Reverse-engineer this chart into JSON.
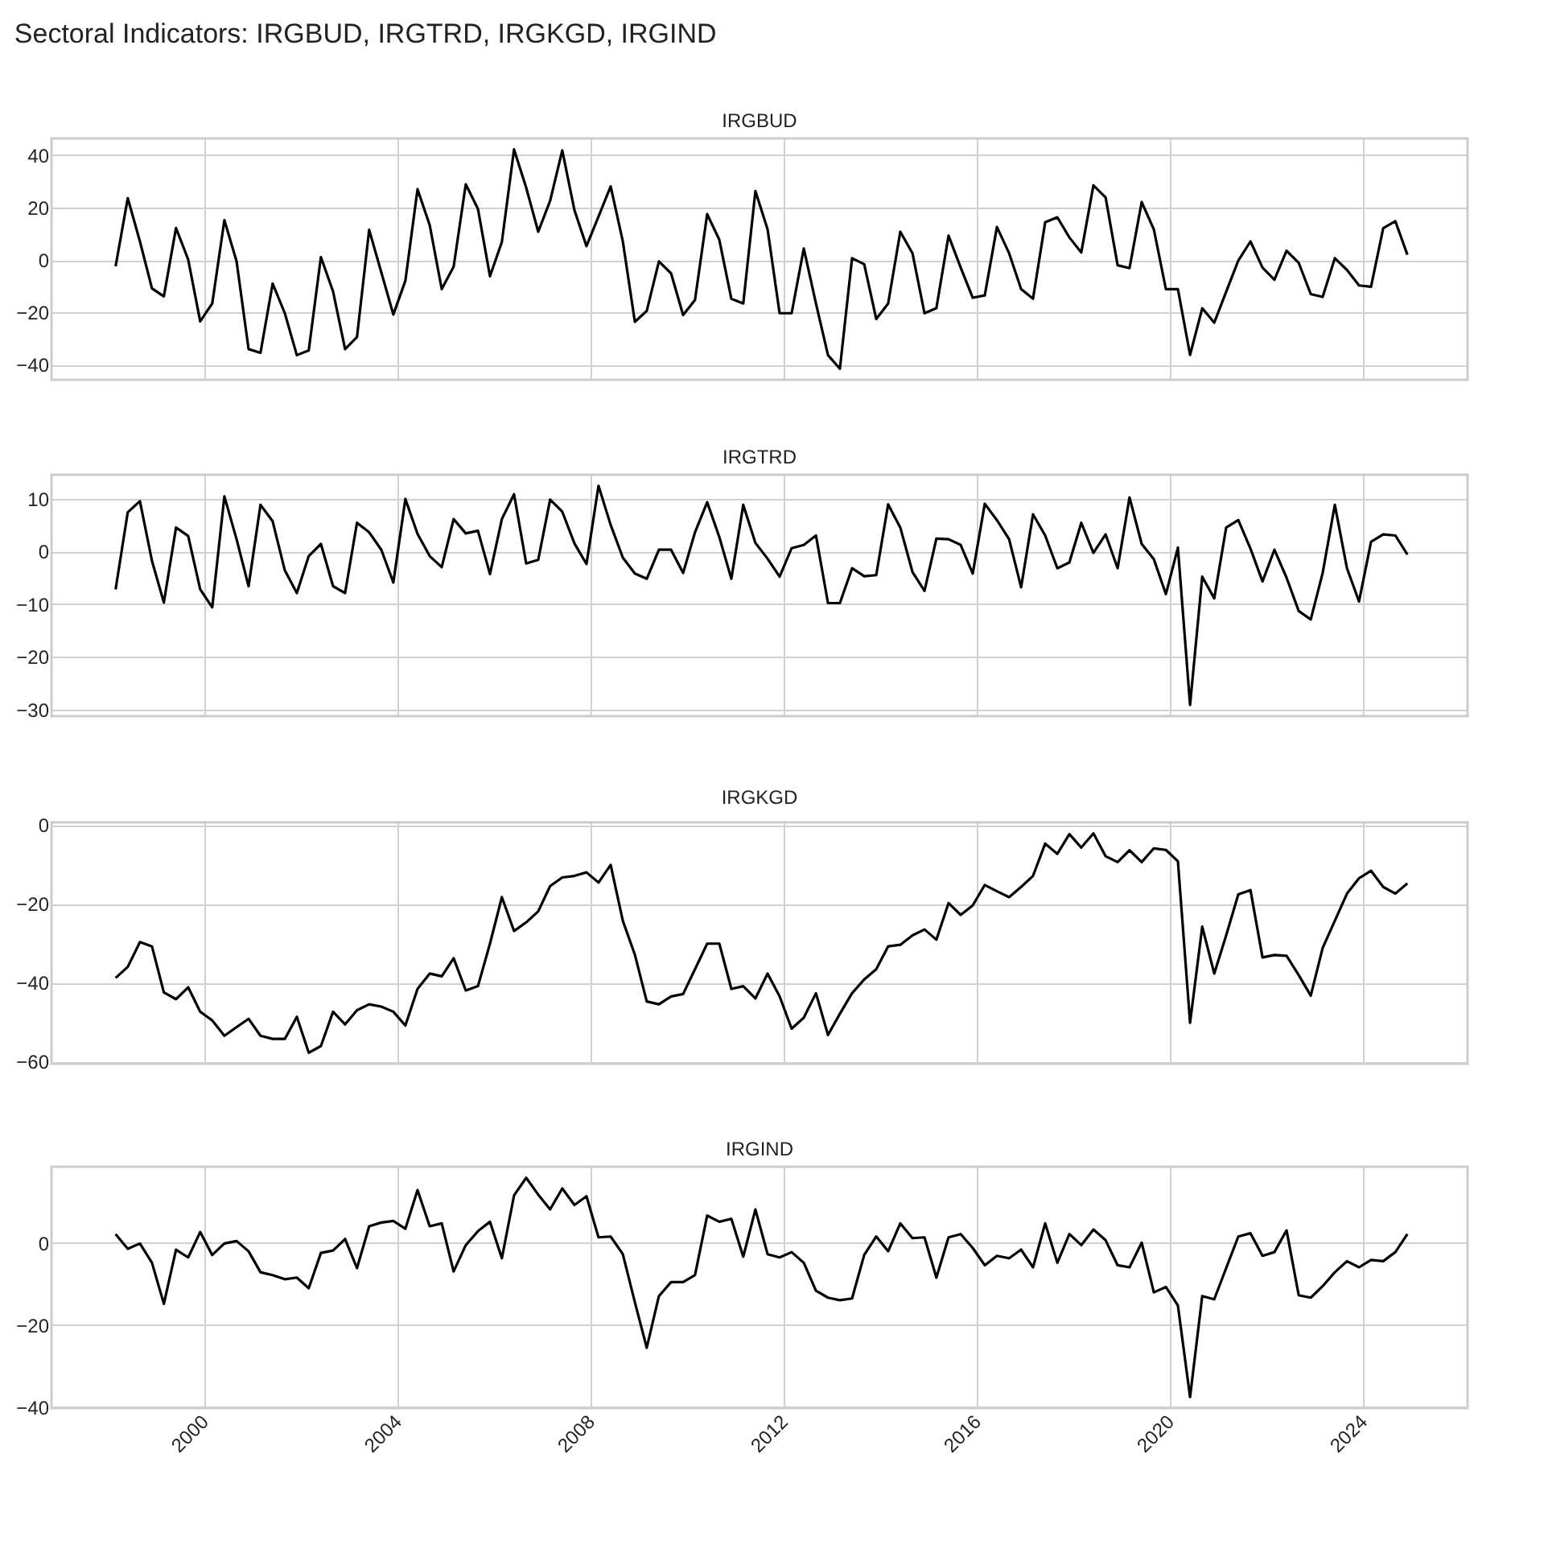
{
  "chart_data": [
    {
      "type": "line",
      "title": "Sectoral Indicators: IRGBUD, IRGTRD, IRGKGD, IRGIND",
      "subtitle": "IRGBUD",
      "grid": true,
      "tick_labels": "y",
      "xlim": [
        "1996-11",
        "2026-03"
      ],
      "xticks": [
        "2000",
        "2004",
        "2008",
        "2012",
        "2016",
        "2020",
        "2024"
      ],
      "ylim": [
        -45.7,
        46.4
      ],
      "yticks": [
        -40,
        -20,
        0,
        20,
        40
      ],
      "x": [
        "1998-03",
        "1998-06",
        "1998-09",
        "1998-12",
        "1999-03",
        "1999-06",
        "1999-09",
        "1999-12",
        "2000-03",
        "2000-06",
        "2000-09",
        "2000-12",
        "2001-03",
        "2001-06",
        "2001-09",
        "2001-12",
        "2002-03",
        "2002-06",
        "2002-09",
        "2002-12",
        "2003-03",
        "2003-06",
        "2003-09",
        "2003-12",
        "2004-03",
        "2004-06",
        "2004-09",
        "2004-12",
        "2005-03",
        "2005-06",
        "2005-09",
        "2005-12",
        "2006-03",
        "2006-06",
        "2006-09",
        "2006-12",
        "2007-03",
        "2007-06",
        "2007-09",
        "2007-12",
        "2008-03",
        "2008-06",
        "2008-09",
        "2008-12",
        "2009-03",
        "2009-06",
        "2009-09",
        "2009-12",
        "2010-03",
        "2010-06",
        "2010-09",
        "2010-12",
        "2011-03",
        "2011-06",
        "2011-09",
        "2011-12",
        "2012-03",
        "2012-06",
        "2012-09",
        "2012-12",
        "2013-03",
        "2013-06",
        "2013-09",
        "2013-12",
        "2014-03",
        "2014-06",
        "2014-09",
        "2014-12",
        "2015-03",
        "2015-06",
        "2015-09",
        "2015-12",
        "2016-03",
        "2016-06",
        "2016-09",
        "2016-12",
        "2017-03",
        "2017-06",
        "2017-09",
        "2017-12",
        "2018-03",
        "2018-06",
        "2018-09",
        "2018-12",
        "2019-03",
        "2019-06",
        "2019-09",
        "2019-12",
        "2020-03",
        "2020-06",
        "2020-09",
        "2020-12",
        "2021-03",
        "2021-06",
        "2021-09",
        "2021-12",
        "2022-03",
        "2022-06",
        "2022-09",
        "2022-12",
        "2023-03",
        "2023-06",
        "2023-09",
        "2023-12",
        "2024-03",
        "2024-06",
        "2024-09",
        "2024-12"
      ],
      "series": [
        {
          "color": "#000000",
          "values": [
            -2.4,
            23.6,
            7.1,
            -10.8,
            -13.9,
            12.2,
            0.2,
            -23.4,
            -16.6,
            15.2,
            -0.5,
            -34,
            -35.4,
            -9,
            -20.3,
            -36.3,
            -34.5,
            1.1,
            -12,
            -34,
            -29.4,
            11.5,
            -4.7,
            -20.8,
            -7.9,
            27,
            13.3,
            -11.1,
            -2.6,
            28.9,
            19.5,
            -6.2,
            6.9,
            42.2,
            27.6,
            10.8,
            22.6,
            41.8,
            19,
            5.3,
            16.6,
            28.1,
            7.1,
            -23.6,
            -19.4,
            -0.5,
            -5.1,
            -21,
            -15.2,
            17.5,
            7.7,
            -14.8,
            -16.6,
            26.3,
            11.7,
            -20.3,
            -20.3,
            4.4,
            -16.6,
            -36.3,
            -41.5,
            0.7,
            -1.6,
            -22.5,
            -16.6,
            10.8,
            2.6,
            -20.3,
            -18.4,
            9.3,
            -2.9,
            -14.4,
            -13.5,
            12.6,
            2.6,
            -11.1,
            -14.8,
            14.4,
            16.3,
            8.6,
            2.9,
            28.5,
            23.9,
            -2,
            -3.1,
            22.1,
            11.7,
            -11.1,
            -11.1,
            -36.2,
            -18.4,
            -23.9,
            -12.1,
            -0.2,
            7.1,
            -2.9,
            -7.5,
            3.5,
            -1.1,
            -13,
            -14.1,
            0.7,
            -3.8,
            -9.7,
            -10.2,
            12.1,
            14.8,
            2
          ]
        }
      ]
    },
    {
      "type": "line",
      "title": "IRGTRD",
      "grid": true,
      "tick_labels": "y",
      "xlim": [
        "1996-11",
        "2026-03"
      ],
      "xticks": [
        "2000",
        "2004",
        "2008",
        "2012",
        "2016",
        "2020",
        "2024"
      ],
      "ylim": [
        -31.2,
        14.5
      ],
      "yticks": [
        -30,
        -20,
        -10,
        0,
        10
      ],
      "x": [
        "1998-03",
        "1998-06",
        "1998-09",
        "1998-12",
        "1999-03",
        "1999-06",
        "1999-09",
        "1999-12",
        "2000-03",
        "2000-06",
        "2000-09",
        "2000-12",
        "2001-03",
        "2001-06",
        "2001-09",
        "2001-12",
        "2002-03",
        "2002-06",
        "2002-09",
        "2002-12",
        "2003-03",
        "2003-06",
        "2003-09",
        "2003-12",
        "2004-03",
        "2004-06",
        "2004-09",
        "2004-12",
        "2005-03",
        "2005-06",
        "2005-09",
        "2005-12",
        "2006-03",
        "2006-06",
        "2006-09",
        "2006-12",
        "2007-03",
        "2007-06",
        "2007-09",
        "2007-12",
        "2008-03",
        "2008-06",
        "2008-09",
        "2008-12",
        "2009-03",
        "2009-06",
        "2009-09",
        "2009-12",
        "2010-03",
        "2010-06",
        "2010-09",
        "2010-12",
        "2011-03",
        "2011-06",
        "2011-09",
        "2011-12",
        "2012-03",
        "2012-06",
        "2012-09",
        "2012-12",
        "2013-03",
        "2013-06",
        "2013-09",
        "2013-12",
        "2014-03",
        "2014-06",
        "2014-09",
        "2014-12",
        "2015-03",
        "2015-06",
        "2015-09",
        "2015-12",
        "2016-03",
        "2016-06",
        "2016-09",
        "2016-12",
        "2017-03",
        "2017-06",
        "2017-09",
        "2017-12",
        "2018-03",
        "2018-06",
        "2018-09",
        "2018-12",
        "2019-03",
        "2019-06",
        "2019-09",
        "2019-12",
        "2020-03",
        "2020-06",
        "2020-09",
        "2020-12",
        "2021-03",
        "2021-06",
        "2021-09",
        "2021-12",
        "2022-03",
        "2022-06",
        "2022-09",
        "2022-12",
        "2023-03",
        "2023-06",
        "2023-09",
        "2023-12",
        "2024-03",
        "2024-06",
        "2024-09",
        "2024-12"
      ],
      "series": [
        {
          "color": "#000000",
          "values": [
            -7.2,
            7.4,
            9.5,
            -1.8,
            -9.7,
            4.5,
            2.9,
            -7.2,
            -10.6,
            10.4,
            2.3,
            -6.6,
            8.8,
            5.7,
            -3.6,
            -7.9,
            -0.9,
            1.4,
            -6.6,
            -7.9,
            5.4,
            3.6,
            0.3,
            -5.9,
            9.9,
            3.3,
            -0.9,
            -3,
            6.1,
            3.4,
            3.9,
            -4.3,
            6.1,
            10.8,
            -2.3,
            -1.6,
            9.8,
            7.5,
            1.5,
            -2.4,
            12.4,
            5,
            -1.2,
            -4.2,
            -5.2,
            0.3,
            0.3,
            -4.1,
            3.6,
            9.3,
            2.7,
            -5.2,
            8.8,
            1.6,
            -1.4,
            -4.8,
            0.6,
            1.2,
            3,
            -9.8,
            -9.8,
            -3.2,
            -4.7,
            -4.5,
            8.9,
            4.5,
            -3.9,
            -7.5,
            2.4,
            2.3,
            1.2,
            -4.2,
            9,
            5.9,
            2.3,
            -6.8,
            7,
            3,
            -3.2,
            -2.1,
            5.4,
            -0.3,
            3.2,
            -3.2,
            10.2,
            1.4,
            -1.5,
            -8.1,
            0.7,
            -29.1,
            -4.8,
            -8.9,
            4.5,
            5.9,
            0.5,
            -5.7,
            0.3,
            -5,
            -11.3,
            -12.9,
            -4.1,
            8.8,
            -3.2,
            -9.5,
            1.8,
            3.2,
            3,
            -0.6
          ]
        }
      ]
    },
    {
      "type": "line",
      "title": "IRGKGD",
      "grid": true,
      "tick_labels": "y",
      "xlim": [
        "1996-11",
        "2026-03"
      ],
      "xticks": [
        "2000",
        "2004",
        "2008",
        "2012",
        "2016",
        "2020",
        "2024"
      ],
      "ylim": [
        -60.6,
        0.7
      ],
      "yticks": [
        -60,
        -40,
        -20,
        0
      ],
      "x": [
        "1998-03",
        "1998-06",
        "1998-09",
        "1998-12",
        "1999-03",
        "1999-06",
        "1999-09",
        "1999-12",
        "2000-03",
        "2000-06",
        "2000-09",
        "2000-12",
        "2001-03",
        "2001-06",
        "2001-09",
        "2001-12",
        "2002-03",
        "2002-06",
        "2002-09",
        "2002-12",
        "2003-03",
        "2003-06",
        "2003-09",
        "2003-12",
        "2004-03",
        "2004-06",
        "2004-09",
        "2004-12",
        "2005-03",
        "2005-06",
        "2005-09",
        "2005-12",
        "2006-03",
        "2006-06",
        "2006-09",
        "2006-12",
        "2007-03",
        "2007-06",
        "2007-09",
        "2007-12",
        "2008-03",
        "2008-06",
        "2008-09",
        "2008-12",
        "2009-03",
        "2009-06",
        "2009-09",
        "2009-12",
        "2010-03",
        "2010-06",
        "2010-09",
        "2010-12",
        "2011-03",
        "2011-06",
        "2011-09",
        "2011-12",
        "2012-03",
        "2012-06",
        "2012-09",
        "2012-12",
        "2013-03",
        "2013-06",
        "2013-09",
        "2013-12",
        "2014-03",
        "2014-06",
        "2014-09",
        "2014-12",
        "2015-03",
        "2015-06",
        "2015-09",
        "2015-12",
        "2016-03",
        "2016-06",
        "2016-09",
        "2016-12",
        "2017-03",
        "2017-06",
        "2017-09",
        "2017-12",
        "2018-03",
        "2018-06",
        "2018-09",
        "2018-12",
        "2019-03",
        "2019-06",
        "2019-09",
        "2019-12",
        "2020-03",
        "2020-06",
        "2020-09",
        "2020-12",
        "2021-03",
        "2021-06",
        "2021-09",
        "2021-12",
        "2022-03",
        "2022-06",
        "2022-09",
        "2022-12",
        "2023-03",
        "2023-06",
        "2023-09",
        "2023-12",
        "2024-03",
        "2024-06",
        "2024-09",
        "2024-12"
      ],
      "series": [
        {
          "color": "#000000",
          "values": [
            -38.8,
            -36,
            -29.7,
            -30.8,
            -42.5,
            -44.2,
            -41.2,
            -47.4,
            -49.6,
            -53.5,
            -51.3,
            -49.2,
            -53.5,
            -54.3,
            -54.3,
            -48.7,
            -57.8,
            -56.1,
            -47.4,
            -50.6,
            -47,
            -45.5,
            -46.1,
            -47.4,
            -50.9,
            -41.6,
            -37.7,
            -38.4,
            -33.8,
            -42,
            -40.9,
            -30.1,
            -18.3,
            -26.9,
            -24.7,
            -21.9,
            -15.5,
            -13.3,
            -12.9,
            -12,
            -14.6,
            -10.1,
            -24.3,
            -32.9,
            -44.8,
            -45.5,
            -43.5,
            -42.9,
            -36.6,
            -30.1,
            -30.1,
            -41.6,
            -40.9,
            -44,
            -37.7,
            -43.5,
            -51.7,
            -48.9,
            -42.7,
            -53.3,
            -47.9,
            -42.7,
            -39.2,
            -36.6,
            -30.8,
            -30.4,
            -28,
            -26.5,
            -29.1,
            -19.8,
            -22.8,
            -20.4,
            -15.2,
            -16.8,
            -18.3,
            -15.7,
            -12.9,
            -4.7,
            -7.3,
            -2.3,
            -5.7,
            -2.1,
            -7.9,
            -9.4,
            -6.4,
            -9.4,
            -5.9,
            -6.3,
            -9.2,
            -50.2,
            -25.8,
            -37.7,
            -28,
            -17.6,
            -16.5,
            -33.6,
            -33,
            -33.2,
            -38.1,
            -43.3,
            -31.2,
            -24.3,
            -17.4,
            -13.5,
            -11.6,
            -15.7,
            -17.4,
            -14.8
          ]
        }
      ]
    },
    {
      "type": "line",
      "title": "IRGIND",
      "grid": true,
      "xlim": [
        "1996-11",
        "2026-03"
      ],
      "xticks": [
        "2000",
        "2004",
        "2008",
        "2012",
        "2016",
        "2020",
        "2024"
      ],
      "ylim": [
        -40.2,
        18.6
      ],
      "yticks": [
        -40,
        -20,
        0
      ],
      "x": [
        "1998-03",
        "1998-06",
        "1998-09",
        "1998-12",
        "1999-03",
        "1999-06",
        "1999-09",
        "1999-12",
        "2000-03",
        "2000-06",
        "2000-09",
        "2000-12",
        "2001-03",
        "2001-06",
        "2001-09",
        "2001-12",
        "2002-03",
        "2002-06",
        "2002-09",
        "2002-12",
        "2003-03",
        "2003-06",
        "2003-09",
        "2003-12",
        "2004-03",
        "2004-06",
        "2004-09",
        "2004-12",
        "2005-03",
        "2005-06",
        "2005-09",
        "2005-12",
        "2006-03",
        "2006-06",
        "2006-09",
        "2006-12",
        "2007-03",
        "2007-06",
        "2007-09",
        "2007-12",
        "2008-03",
        "2008-06",
        "2008-09",
        "2008-12",
        "2009-03",
        "2009-06",
        "2009-09",
        "2009-12",
        "2010-03",
        "2010-06",
        "2010-09",
        "2010-12",
        "2011-03",
        "2011-06",
        "2011-09",
        "2011-12",
        "2012-03",
        "2012-06",
        "2012-09",
        "2012-12",
        "2013-03",
        "2013-06",
        "2013-09",
        "2013-12",
        "2014-03",
        "2014-06",
        "2014-09",
        "2014-12",
        "2015-03",
        "2015-06",
        "2015-09",
        "2015-12",
        "2016-03",
        "2016-06",
        "2016-09",
        "2016-12",
        "2017-03",
        "2017-06",
        "2017-09",
        "2017-12",
        "2018-03",
        "2018-06",
        "2018-09",
        "2018-12",
        "2019-03",
        "2019-06",
        "2019-09",
        "2019-12",
        "2020-03",
        "2020-06",
        "2020-09",
        "2020-12",
        "2021-03",
        "2021-06",
        "2021-09",
        "2021-12",
        "2022-03",
        "2022-06",
        "2022-09",
        "2022-12",
        "2023-03",
        "2023-06",
        "2023-09",
        "2023-12",
        "2024-03",
        "2024-06",
        "2024-09",
        "2024-12"
      ],
      "series": [
        {
          "color": "#000000",
          "values": [
            2.2,
            -1.4,
            -0.1,
            -4.8,
            -14.8,
            -1.6,
            -3.5,
            2.7,
            -2.9,
            -0.1,
            0.5,
            -2,
            -7.1,
            -7.8,
            -8.8,
            -8.4,
            -11,
            -2.4,
            -1.8,
            1,
            -6.1,
            4.1,
            5,
            5.4,
            3.5,
            12.9,
            4.1,
            4.8,
            -6.9,
            -0.5,
            2.9,
            5.2,
            -3.7,
            11.6,
            15.9,
            11.8,
            8.2,
            13.3,
            9.3,
            11.4,
            1.4,
            1.6,
            -2.7,
            -14.4,
            -25.5,
            -12.9,
            -9.5,
            -9.5,
            -7.8,
            6.7,
            5.2,
            5.9,
            -3.3,
            8.2,
            -2.7,
            -3.5,
            -2.2,
            -4.8,
            -11.6,
            -13.3,
            -13.9,
            -13.5,
            -2.9,
            1.6,
            -2,
            4.8,
            1.2,
            1.4,
            -8.4,
            1.4,
            2.2,
            -1.2,
            -5.4,
            -3.1,
            -3.7,
            -1.6,
            -5.9,
            4.8,
            -4.8,
            2.2,
            -0.5,
            3.3,
            0.7,
            -5.4,
            -5.9,
            0.1,
            -12,
            -10.7,
            -15.2,
            -37.5,
            -12.9,
            -13.7,
            -6.1,
            1.6,
            2.4,
            -3.1,
            -2.2,
            3.1,
            -12.7,
            -13.3,
            -10.5,
            -7.1,
            -4.4,
            -5.9,
            -4.1,
            -4.4,
            -2.2,
            2.2
          ]
        }
      ]
    }
  ]
}
